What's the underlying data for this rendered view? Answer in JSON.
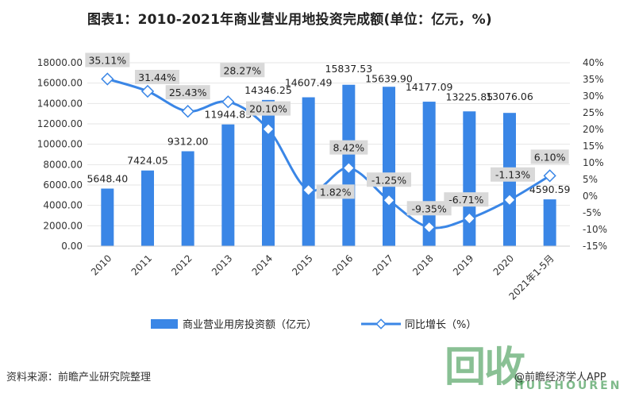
{
  "title": "图表1：2010-2021年商业营业用地投资完成额(单位：亿元，%)",
  "source": "资料来源：前瞻产业研究院整理",
  "credit": "@前瞻经济学人APP",
  "watermark": {
    "mark": "回收",
    "sub": "HUISHOUREN"
  },
  "colors": {
    "bar": "#3a86e6",
    "line": "#3a86e6",
    "label_bg": "#d9d9d9",
    "grid": "#e6e6e6"
  },
  "chart_data": {
    "type": "bar+line",
    "categories": [
      "2010",
      "2011",
      "2012",
      "2013",
      "2014",
      "2015",
      "2016",
      "2017",
      "2018",
      "2019",
      "2020",
      "2021年1-5月"
    ],
    "series": [
      {
        "name": "商业营业用房投资额（亿元）",
        "type": "bar",
        "axis": "left",
        "values": [
          5648.4,
          7424.05,
          9312.0,
          11944.83,
          14346.25,
          14607.49,
          15837.53,
          15639.9,
          14177.09,
          13225.85,
          13076.06,
          4590.59
        ],
        "labels": [
          "5648.40",
          "7424.05",
          "9312.00",
          "11944.83",
          "14346.25",
          "14607.49",
          "15837.53",
          "15639.90",
          "14177.09",
          "13225.85",
          "13076.06",
          "4590.59"
        ]
      },
      {
        "name": "同比增长（%）",
        "type": "line",
        "axis": "right",
        "values": [
          35.11,
          31.44,
          25.43,
          28.27,
          20.1,
          1.82,
          8.42,
          -1.25,
          -9.35,
          -6.71,
          -1.13,
          6.1
        ],
        "labels": [
          "35.11%",
          "31.44%",
          "25.43%",
          "28.27%",
          "20.10%",
          "1.82%",
          "8.42%",
          "-1.25%",
          "-9.35%",
          "-6.71%",
          "-1.13%",
          "6.10%"
        ]
      }
    ],
    "y_left": {
      "min": 0,
      "max": 18000,
      "step": 2000,
      "ticks": [
        "0.00",
        "2000.00",
        "4000.00",
        "6000.00",
        "8000.00",
        "10000.00",
        "12000.00",
        "14000.00",
        "16000.00",
        "18000.00"
      ]
    },
    "y_right": {
      "min": -15,
      "max": 40,
      "step": 5,
      "ticks": [
        "-15%",
        "-10%",
        "-5%",
        "0%",
        "5%",
        "10%",
        "15%",
        "20%",
        "25%",
        "30%",
        "35%",
        "40%"
      ]
    },
    "legend": {
      "position": "bottom",
      "items": [
        "商业营业用房投资额（亿元）",
        "同比增长（%）"
      ]
    }
  }
}
